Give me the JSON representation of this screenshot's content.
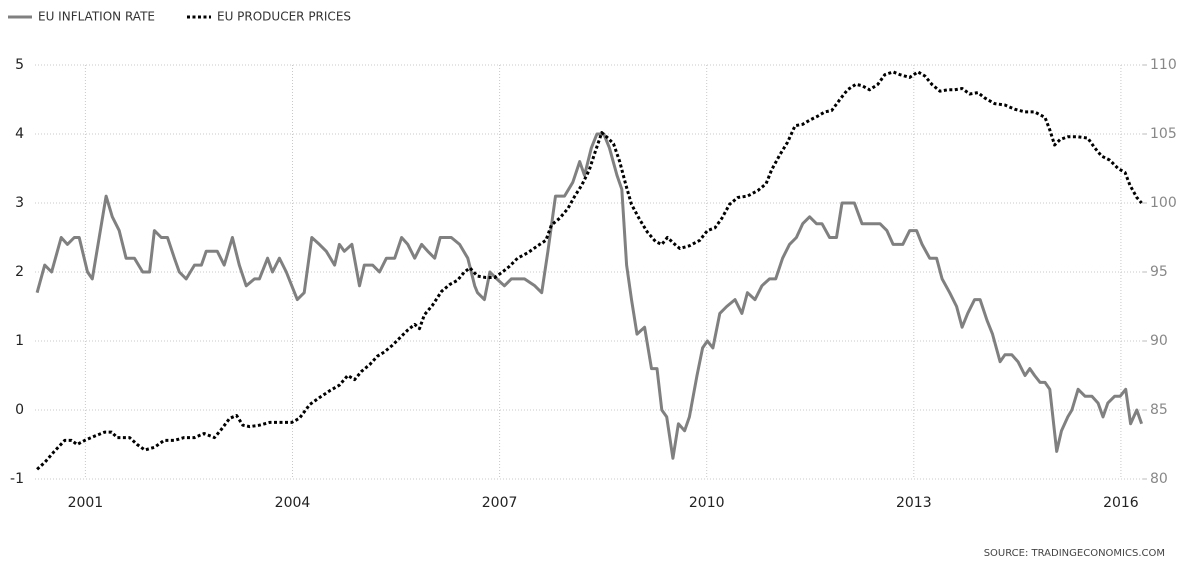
{
  "chart_data": {
    "type": "line",
    "source": "SOURCE: TRADINGECONOMICS.COM",
    "xlim": [
      2000.27,
      2016.32
    ],
    "xticks": [
      2001,
      2004,
      2007,
      2010,
      2013,
      2016
    ],
    "ylim": [
      -1,
      5
    ],
    "yticks": [
      -1,
      0,
      1,
      2,
      3,
      4,
      5
    ],
    "y2lim": [
      80,
      110
    ],
    "y2ticks": [
      80,
      85,
      90,
      95,
      100,
      105,
      110
    ],
    "grid": true,
    "legend": "top-left",
    "series": [
      {
        "name": "EU INFLATION RATE",
        "color": "#808080",
        "style": "solid",
        "x": [
          2000.3,
          2000.41,
          2000.51,
          2000.65,
          2000.74,
          2000.84,
          2000.91,
          2001.03,
          2001.1,
          2001.2,
          2001.3,
          2001.39,
          2001.49,
          2001.59,
          2001.71,
          2001.83,
          2001.93,
          2002.0,
          2002.1,
          2002.19,
          2002.29,
          2002.36,
          2002.46,
          2002.58,
          2002.68,
          2002.75,
          2002.91,
          2003.01,
          2003.13,
          2003.23,
          2003.33,
          2003.45,
          2003.52,
          2003.64,
          2003.71,
          2003.81,
          2003.91,
          2003.99,
          2004.07,
          2004.17,
          2004.28,
          2004.39,
          2004.49,
          2004.61,
          2004.68,
          2004.75,
          2004.86,
          2004.97,
          2005.04,
          2005.16,
          2005.26,
          2005.36,
          2005.48,
          2005.58,
          2005.67,
          2005.77,
          2005.87,
          2005.96,
          2006.06,
          2006.14,
          2006.3,
          2006.42,
          2006.54,
          2006.64,
          2006.68,
          2006.78,
          2006.86,
          2006.96,
          2007.07,
          2007.17,
          2007.36,
          2007.51,
          2007.61,
          2007.7,
          2007.81,
          2007.94,
          2008.06,
          2008.16,
          2008.23,
          2008.33,
          2008.41,
          2008.51,
          2008.59,
          2008.7,
          2008.77,
          2008.84,
          2008.91,
          2008.99,
          2009.1,
          2009.2,
          2009.28,
          2009.35,
          2009.42,
          2009.51,
          2009.59,
          2009.68,
          2009.75,
          2009.86,
          2009.94,
          2010.01,
          2010.09,
          2010.19,
          2010.29,
          2010.41,
          2010.51,
          2010.59,
          2010.7,
          2010.8,
          2010.91,
          2011.0,
          2011.1,
          2011.2,
          2011.3,
          2011.39,
          2011.49,
          2011.59,
          2011.67,
          2011.78,
          2011.88,
          2011.96,
          2012.14,
          2012.25,
          2012.51,
          2012.61,
          2012.7,
          2012.84,
          2012.94,
          2013.04,
          2013.12,
          2013.23,
          2013.33,
          2013.41,
          2013.52,
          2013.62,
          2013.7,
          2013.78,
          2013.88,
          2013.96,
          2014.06,
          2014.14,
          2014.25,
          2014.32,
          2014.42,
          2014.51,
          2014.61,
          2014.68,
          2014.75,
          2014.83,
          2014.9,
          2014.97,
          2015.07,
          2015.14,
          2015.23,
          2015.29,
          2015.38,
          2015.48,
          2015.58,
          2015.67,
          2015.74,
          2015.81,
          2015.91,
          2015.99,
          2016.07,
          2016.14,
          2016.23,
          2016.3
        ],
        "values": [
          1.7,
          2.1,
          2.0,
          2.5,
          2.4,
          2.5,
          2.5,
          2.0,
          1.9,
          2.5,
          3.1,
          2.8,
          2.6,
          2.2,
          2.2,
          2.0,
          2.0,
          2.6,
          2.5,
          2.5,
          2.2,
          2.0,
          1.9,
          2.1,
          2.1,
          2.3,
          2.3,
          2.1,
          2.5,
          2.1,
          1.8,
          1.9,
          1.9,
          2.2,
          2.0,
          2.2,
          2.0,
          1.8,
          1.6,
          1.7,
          2.5,
          2.4,
          2.3,
          2.1,
          2.4,
          2.3,
          2.4,
          1.8,
          2.1,
          2.1,
          2.0,
          2.2,
          2.2,
          2.5,
          2.4,
          2.2,
          2.4,
          2.3,
          2.2,
          2.5,
          2.5,
          2.4,
          2.2,
          1.8,
          1.7,
          1.6,
          2.0,
          1.9,
          1.8,
          1.9,
          1.9,
          1.8,
          1.7,
          2.3,
          3.1,
          3.1,
          3.3,
          3.6,
          3.4,
          3.8,
          4.0,
          4.0,
          3.8,
          3.4,
          3.2,
          2.1,
          1.6,
          1.1,
          1.2,
          0.6,
          0.6,
          0.0,
          -0.1,
          -0.7,
          -0.2,
          -0.3,
          -0.1,
          0.5,
          0.9,
          1.0,
          0.9,
          1.4,
          1.5,
          1.6,
          1.4,
          1.7,
          1.6,
          1.8,
          1.9,
          1.9,
          2.2,
          2.4,
          2.5,
          2.7,
          2.8,
          2.7,
          2.7,
          2.5,
          2.5,
          3.0,
          3.0,
          2.7,
          2.7,
          2.6,
          2.4,
          2.4,
          2.6,
          2.6,
          2.4,
          2.2,
          2.2,
          1.9,
          1.7,
          1.5,
          1.2,
          1.4,
          1.6,
          1.6,
          1.3,
          1.1,
          0.7,
          0.8,
          0.8,
          0.7,
          0.5,
          0.6,
          0.5,
          0.4,
          0.4,
          0.3,
          -0.6,
          -0.3,
          -0.1,
          0.0,
          0.3,
          0.2,
          0.2,
          0.1,
          -0.1,
          0.1,
          0.2,
          0.2,
          0.3,
          -0.2,
          0.0,
          -0.2
        ]
      },
      {
        "name": "EU PRODUCER PRICES",
        "color": "#000000",
        "style": "dotted",
        "axis": "y2",
        "x": [
          2000.3,
          2000.41,
          2000.55,
          2000.7,
          2000.8,
          2000.88,
          2000.99,
          2001.13,
          2001.28,
          2001.38,
          2001.46,
          2001.64,
          2001.75,
          2001.86,
          2002.0,
          2002.14,
          2002.29,
          2002.43,
          2002.58,
          2002.72,
          2002.87,
          2002.97,
          2003.09,
          2003.19,
          2003.28,
          2003.38,
          2003.52,
          2003.67,
          2003.84,
          2003.99,
          2004.1,
          2004.25,
          2004.39,
          2004.54,
          2004.68,
          2004.8,
          2004.9,
          2005.0,
          2005.12,
          2005.23,
          2005.33,
          2005.45,
          2005.55,
          2005.67,
          2005.77,
          2005.84,
          2005.91,
          2006.03,
          2006.16,
          2006.28,
          2006.39,
          2006.49,
          2006.57,
          2006.68,
          2006.8,
          2006.93,
          2007.04,
          2007.14,
          2007.26,
          2007.41,
          2007.55,
          2007.67,
          2007.75,
          2007.87,
          2007.99,
          2008.09,
          2008.19,
          2008.3,
          2008.39,
          2008.48,
          2008.57,
          2008.65,
          2008.74,
          2008.83,
          2008.91,
          2009.03,
          2009.14,
          2009.26,
          2009.35,
          2009.43,
          2009.54,
          2009.61,
          2009.75,
          2009.9,
          2010.01,
          2010.12,
          2010.22,
          2010.33,
          2010.45,
          2010.59,
          2010.74,
          2010.86,
          2010.94,
          2011.06,
          2011.17,
          2011.28,
          2011.39,
          2011.49,
          2011.61,
          2011.71,
          2011.81,
          2011.93,
          2012.04,
          2012.16,
          2012.25,
          2012.36,
          2012.48,
          2012.58,
          2012.7,
          2012.8,
          2012.94,
          2013.06,
          2013.16,
          2013.26,
          2013.38,
          2013.49,
          2013.59,
          2013.7,
          2013.81,
          2013.93,
          2014.03,
          2014.17,
          2014.32,
          2014.46,
          2014.61,
          2014.75,
          2014.9,
          2014.97,
          2015.04,
          2015.12,
          2015.23,
          2015.38,
          2015.52,
          2015.62,
          2015.72,
          2015.84,
          2015.96,
          2016.06,
          2016.13,
          2016.23,
          2016.3
        ],
        "values": [
          80.7,
          81.2,
          82.0,
          82.8,
          82.8,
          82.5,
          82.8,
          83.1,
          83.4,
          83.4,
          83.0,
          83.0,
          82.5,
          82.1,
          82.3,
          82.8,
          82.8,
          83.0,
          83.0,
          83.3,
          83.0,
          83.6,
          84.4,
          84.6,
          83.9,
          83.8,
          83.9,
          84.1,
          84.1,
          84.1,
          84.4,
          85.4,
          85.9,
          86.4,
          86.8,
          87.5,
          87.2,
          87.8,
          88.3,
          88.9,
          89.2,
          89.7,
          90.2,
          90.8,
          91.2,
          90.9,
          91.9,
          92.6,
          93.6,
          94.1,
          94.4,
          95.0,
          95.3,
          94.7,
          94.6,
          94.6,
          95.0,
          95.4,
          96.0,
          96.4,
          96.9,
          97.3,
          98.4,
          98.9,
          99.6,
          100.5,
          101.3,
          102.4,
          103.8,
          105.1,
          104.7,
          104.3,
          103.0,
          101.3,
          99.9,
          98.8,
          97.9,
          97.2,
          97.0,
          97.5,
          97.0,
          96.7,
          96.9,
          97.3,
          98.0,
          98.2,
          98.9,
          99.9,
          100.4,
          100.5,
          100.9,
          101.4,
          102.4,
          103.5,
          104.4,
          105.6,
          105.7,
          106.0,
          106.3,
          106.6,
          106.7,
          107.5,
          108.2,
          108.6,
          108.5,
          108.2,
          108.6,
          109.3,
          109.5,
          109.3,
          109.1,
          109.5,
          109.2,
          108.6,
          108.1,
          108.2,
          108.2,
          108.3,
          107.9,
          108.0,
          107.6,
          107.2,
          107.1,
          106.8,
          106.6,
          106.6,
          106.2,
          105.3,
          104.2,
          104.6,
          104.8,
          104.8,
          104.7,
          104.0,
          103.4,
          103.1,
          102.5,
          102.2,
          101.3,
          100.4,
          100.0
        ]
      }
    ]
  }
}
